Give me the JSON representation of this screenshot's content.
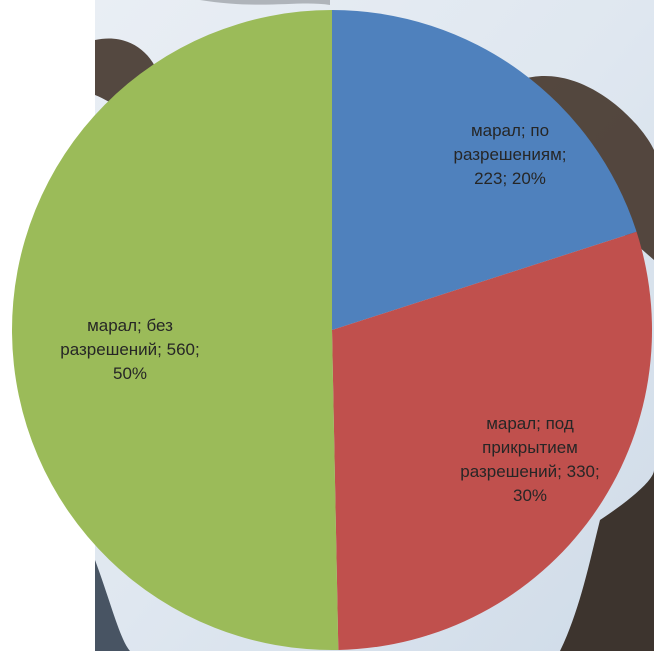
{
  "chart_data": {
    "type": "pie",
    "values": [
      223,
      330,
      560
    ],
    "value_labels": [
      "марал; по разрешениям; 223; 20%",
      "марал; под прикрытием разрешений; 330; 30%",
      "марал; без разрешений; 560; 50%"
    ],
    "colors": [
      "#4f81bd",
      "#c0504d",
      "#9bbb59"
    ],
    "start_angle": 0,
    "direction": "clockwise"
  }
}
